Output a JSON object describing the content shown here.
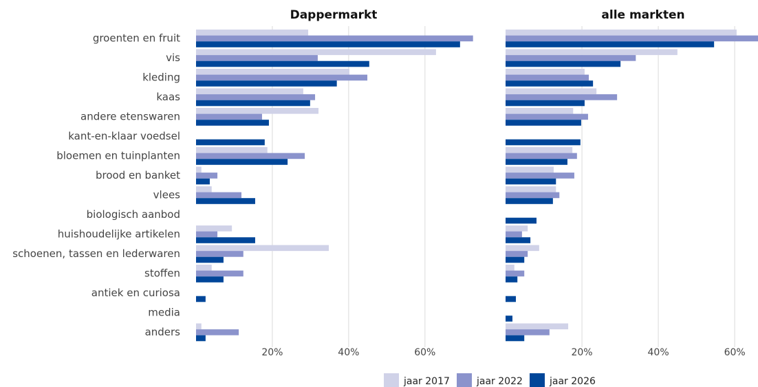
{
  "chart_data": [
    {
      "type": "bar",
      "orientation": "horizontal",
      "title": "Dappermarkt",
      "categories": [
        "groenten en fruit",
        "vis",
        "kleding",
        "kaas",
        "andere etenswaren",
        "kant-en-klaar voedsel",
        "bloemen en tuinplanten",
        "brood en banket",
        "vlees",
        "biologisch aanbod",
        "huishoudelijke artikelen",
        "schoenen, tassen en lederwaren",
        "stoffen",
        "antiek en curiosa",
        "media",
        "anders"
      ],
      "series": [
        {
          "name": "jaar 2017",
          "color": "#d0d2e8",
          "values": [
            29.4,
            62.9,
            40.2,
            28.1,
            32.1,
            null,
            18.7,
            1.4,
            4.1,
            null,
            9.4,
            34.8,
            4.1,
            null,
            null,
            1.4
          ]
        },
        {
          "name": "jaar 2022",
          "color": "#8b93cc",
          "values": [
            72.6,
            31.9,
            44.9,
            31.2,
            17.3,
            null,
            28.5,
            5.6,
            11.9,
            null,
            5.6,
            12.4,
            12.4,
            null,
            null,
            11.2
          ]
        },
        {
          "name": "jaar 2026",
          "color": "#004699",
          "values": [
            69.2,
            45.4,
            36.9,
            29.9,
            19.1,
            18.0,
            24.0,
            3.6,
            15.5,
            null,
            15.5,
            7.2,
            7.2,
            2.5,
            null,
            2.5
          ]
        }
      ],
      "xlim": [
        0,
        75
      ],
      "xticks": [
        {
          "value": 20,
          "label": "20%"
        },
        {
          "value": 40,
          "label": "40%"
        },
        {
          "value": 60,
          "label": "60%"
        }
      ],
      "grid": true
    },
    {
      "type": "bar",
      "orientation": "horizontal",
      "title": "alle markten",
      "series": [
        {
          "values": [
            60.5,
            45.0,
            20.7,
            23.8,
            17.7,
            null,
            17.5,
            12.6,
            13.2,
            null,
            5.8,
            8.8,
            2.3,
            null,
            null,
            16.4
          ]
        },
        {
          "values": [
            66.1,
            34.1,
            21.8,
            29.2,
            21.6,
            null,
            18.7,
            18.0,
            14.1,
            null,
            4.3,
            5.8,
            4.9,
            null,
            null,
            11.5
          ]
        },
        {
          "values": [
            54.6,
            30.1,
            22.9,
            20.7,
            19.8,
            19.6,
            16.2,
            13.2,
            12.4,
            8.1,
            6.5,
            4.9,
            3.1,
            2.7,
            1.8,
            4.9
          ]
        }
      ],
      "xlim": [
        0,
        66.1
      ],
      "xticks": [
        {
          "value": 20,
          "label": "20%"
        },
        {
          "value": 40,
          "label": "40%"
        },
        {
          "value": 60,
          "label": "60%"
        }
      ],
      "grid": true
    }
  ]
}
